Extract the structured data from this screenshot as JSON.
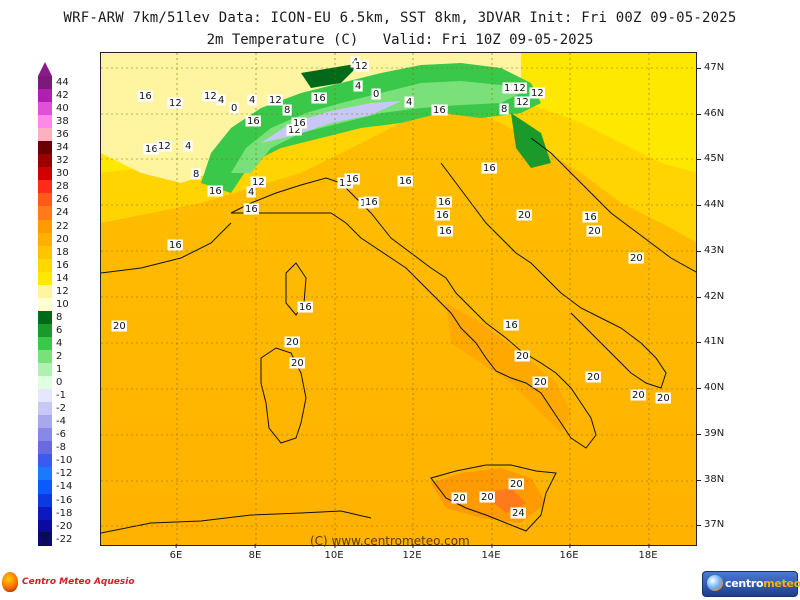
{
  "header": {
    "line1": "WRF-ARW 7km/51lev  Data: ICON-EU 6.5km, SST 8km, 3DVAR  Init: Fri 00Z 09-05-2025",
    "field": "2m Temperature (C)",
    "valid": "Valid: Fri 10Z 09-05-2025"
  },
  "legend": {
    "items": [
      {
        "label": "44",
        "color": "#7a1a7a"
      },
      {
        "label": "42",
        "color": "#b020b0"
      },
      {
        "label": "40",
        "color": "#e050d8"
      },
      {
        "label": "38",
        "color": "#ff88e8"
      },
      {
        "label": "36",
        "color": "#ffb0c0"
      },
      {
        "label": "34",
        "color": "#6a0000"
      },
      {
        "label": "32",
        "color": "#9a0000"
      },
      {
        "label": "30",
        "color": "#d00000"
      },
      {
        "label": "28",
        "color": "#ff2a1a"
      },
      {
        "label": "26",
        "color": "#ff5a1a"
      },
      {
        "label": "24",
        "color": "#ff7a1a"
      },
      {
        "label": "22",
        "color": "#ff9a00"
      },
      {
        "label": "20",
        "color": "#ffb000"
      },
      {
        "label": "18",
        "color": "#ffc400"
      },
      {
        "label": "16",
        "color": "#ffd800"
      },
      {
        "label": "14",
        "color": "#ffe800"
      },
      {
        "label": "12",
        "color": "#fff4a0"
      },
      {
        "label": "10",
        "color": "#ffffd0"
      },
      {
        "label": "8",
        "color": "#006a1a"
      },
      {
        "label": "6",
        "color": "#1a9a2a"
      },
      {
        "label": "4",
        "color": "#3ac84a"
      },
      {
        "label": "2",
        "color": "#7ae07a"
      },
      {
        "label": "1",
        "color": "#b0f0b0"
      },
      {
        "label": "0",
        "color": "#e0ffe0"
      },
      {
        "label": "-1",
        "color": "#e6e6ff"
      },
      {
        "label": "-2",
        "color": "#c8c8f6"
      },
      {
        "label": "-4",
        "color": "#a8a8ee"
      },
      {
        "label": "-6",
        "color": "#8888e6"
      },
      {
        "label": "-8",
        "color": "#6a6ae0"
      },
      {
        "label": "-10",
        "color": "#3a5af0"
      },
      {
        "label": "-12",
        "color": "#1a7aff"
      },
      {
        "label": "-14",
        "color": "#0a5aff"
      },
      {
        "label": "-16",
        "color": "#0a3ae0"
      },
      {
        "label": "-18",
        "color": "#0a1ac0"
      },
      {
        "label": "-20",
        "color": "#0a0aa0"
      },
      {
        "label": "-22",
        "color": "#0a0a70"
      }
    ]
  },
  "axes": {
    "lat_labels": [
      "47N",
      "46N",
      "45N",
      "44N",
      "43N",
      "42N",
      "41N",
      "40N",
      "39N",
      "38N",
      "37N"
    ],
    "lon_labels": [
      "6E",
      "8E",
      "10E",
      "12E",
      "14E",
      "16E",
      "18E"
    ]
  },
  "contour_labels": [
    "16",
    "12",
    "12",
    "4",
    "0",
    "4",
    "12",
    "8",
    "12",
    "16",
    "4",
    "12",
    "4",
    "0",
    "4",
    "8",
    "12",
    "12",
    "12",
    "8",
    "12",
    "16",
    "16",
    "16",
    "16",
    "12",
    "4",
    "8",
    "16",
    "4",
    "16",
    "16",
    "12",
    "16",
    "12",
    "16",
    "16",
    "16",
    "16",
    "16",
    "20",
    "16",
    "16",
    "16",
    "20",
    "16",
    "16",
    "20",
    "20",
    "20",
    "20",
    "20",
    "20",
    "20",
    "20",
    "24",
    "20",
    "20",
    "20",
    "20"
  ],
  "copyright": "(C) www.centrometeo.com",
  "logos": {
    "left": "Centro Meteo Aquesio",
    "right_part1": "centro",
    "right_part2": "meteo"
  }
}
